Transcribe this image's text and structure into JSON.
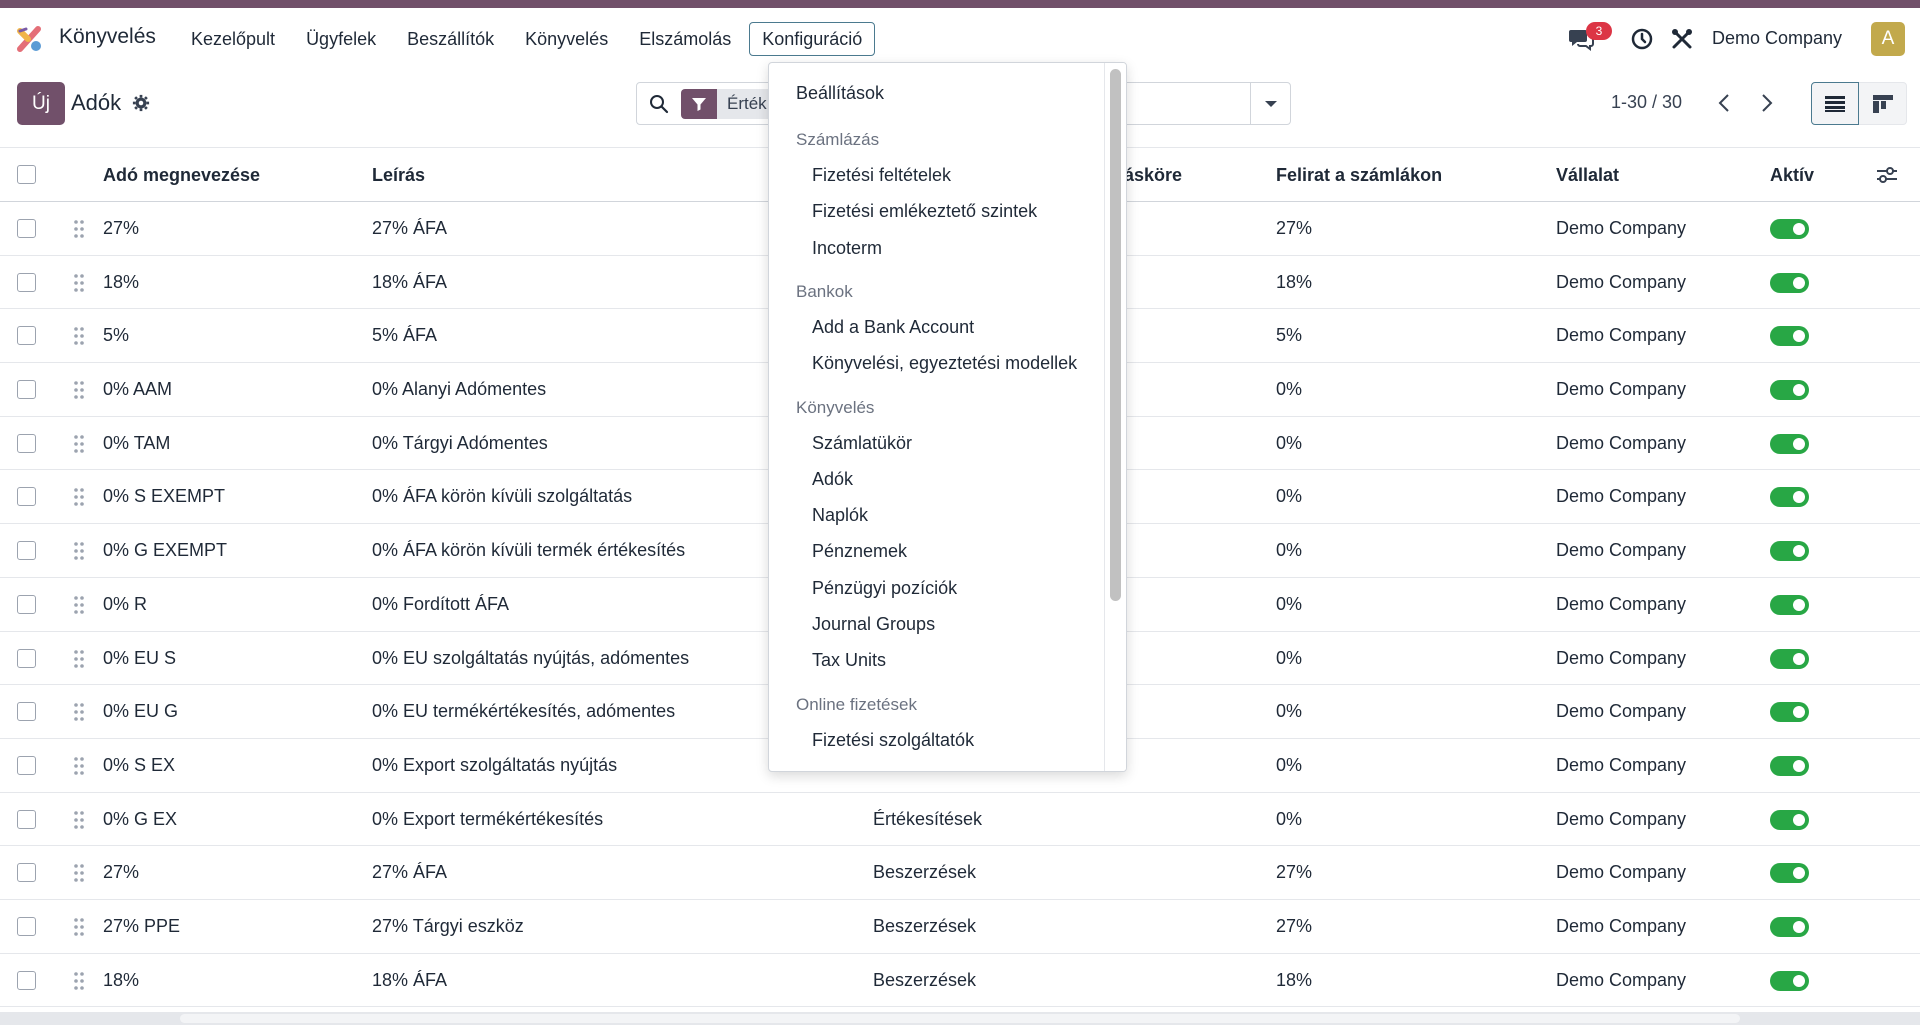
{
  "navbar": {
    "app_name": "Könyvelés",
    "menu": [
      "Kezelőpult",
      "Ügyfelek",
      "Beszállítók",
      "Könyvelés",
      "Elszámolás",
      "Konfiguráció"
    ],
    "active_menu": "Konfiguráció",
    "chat_badge": "3",
    "company": "Demo Company",
    "avatar_letter": "A"
  },
  "control": {
    "new_label": "Új",
    "title": "Adók",
    "facet_label": "Érték",
    "pager": "1-30 / 30"
  },
  "table": {
    "headers": [
      "Adó megnevezése",
      "Leírás",
      "ásköre",
      "Felirat a számlákon",
      "Vállalat",
      "Aktív"
    ],
    "rows": [
      {
        "name": "27%",
        "desc": "27% ÁFA",
        "scope": "",
        "label": "27%",
        "company": "Demo Company"
      },
      {
        "name": "18%",
        "desc": "18% ÁFA",
        "scope": "",
        "label": "18%",
        "company": "Demo Company"
      },
      {
        "name": "5%",
        "desc": "5% ÁFA",
        "scope": "",
        "label": "5%",
        "company": "Demo Company"
      },
      {
        "name": "0% AAM",
        "desc": "0% Alanyi Adómentes",
        "scope": "",
        "label": "0%",
        "company": "Demo Company"
      },
      {
        "name": "0% TAM",
        "desc": "0% Tárgyi Adómentes",
        "scope": "",
        "label": "0%",
        "company": "Demo Company"
      },
      {
        "name": "0% S EXEMPT",
        "desc": "0% ÁFA körön kívüli szolgáltatás",
        "scope": "",
        "label": "0%",
        "company": "Demo Company"
      },
      {
        "name": "0% G EXEMPT",
        "desc": "0% ÁFA körön kívüli termék értékesítés",
        "scope": "",
        "label": "0%",
        "company": "Demo Company"
      },
      {
        "name": "0% R",
        "desc": "0% Fordított ÁFA",
        "scope": "",
        "label": "0%",
        "company": "Demo Company"
      },
      {
        "name": "0% EU S",
        "desc": "0% EU szolgáltatás nyújtás, adómentes",
        "scope": "",
        "label": "0%",
        "company": "Demo Company"
      },
      {
        "name": "0% EU G",
        "desc": "0% EU termékértékesítés, adómentes",
        "scope": "",
        "label": "0%",
        "company": "Demo Company"
      },
      {
        "name": "0% S EX",
        "desc": "0% Export szolgáltatás nyújtás",
        "scope": "",
        "label": "0%",
        "company": "Demo Company"
      },
      {
        "name": "0% G EX",
        "desc": "0% Export termékértékesítés",
        "scope": "Értékesítések",
        "label": "0%",
        "company": "Demo Company"
      },
      {
        "name": "27%",
        "desc": "27% ÁFA",
        "scope": "Beszerzések",
        "label": "27%",
        "company": "Demo Company"
      },
      {
        "name": "27% PPE",
        "desc": "27% Tárgyi eszköz",
        "scope": "Beszerzések",
        "label": "27%",
        "company": "Demo Company"
      },
      {
        "name": "18%",
        "desc": "18% ÁFA",
        "scope": "Beszerzések",
        "label": "18%",
        "company": "Demo Company"
      }
    ]
  },
  "dropdown": {
    "settings": "Beállítások",
    "sections": [
      {
        "header": "Számlázás",
        "items": [
          "Fizetési feltételek",
          "Fizetési emlékeztető szintek",
          "Incoterm"
        ]
      },
      {
        "header": "Bankok",
        "items": [
          "Add a Bank Account",
          "Könyvelési, egyeztetési modellek"
        ]
      },
      {
        "header": "Könyvelés",
        "items": [
          "Számlatükör",
          "Adók",
          "Naplók",
          "Pénznemek",
          "Pénzügyi pozíciók",
          "Journal Groups",
          "Tax Units"
        ]
      },
      {
        "header": "Online fizetések",
        "items": [
          "Fizetési szolgáltatók"
        ]
      }
    ]
  }
}
